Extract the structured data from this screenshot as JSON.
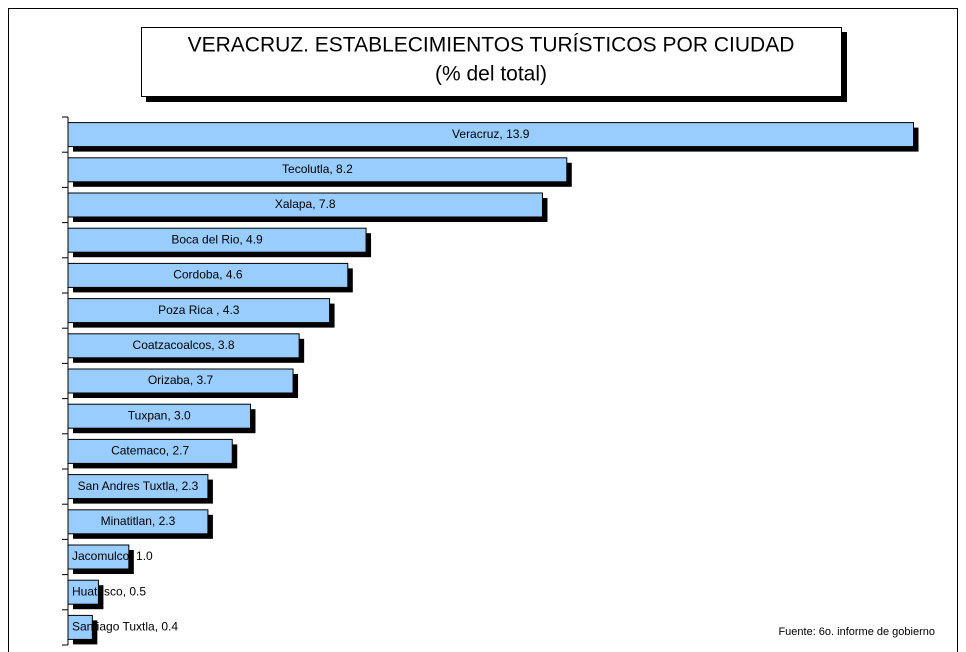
{
  "chart_data": {
    "type": "bar",
    "orientation": "horizontal",
    "title": "VERACRUZ. ESTABLECIMIENTOS TURÍSTICOS POR CIUDAD",
    "subtitle": "(% del total)",
    "values": [
      13.9,
      8.2,
      7.8,
      4.9,
      4.6,
      4.3,
      3.8,
      3.7,
      3.0,
      2.7,
      2.3,
      2.3,
      1.0,
      0.5,
      0.4
    ],
    "value_labels": [
      "Veracruz,  13.9",
      "Tecolutla,  8.2",
      "Xalapa,  7.8",
      "Boca del Rio,  4.9",
      "Cordoba,  4.6",
      "Poza Rica ,  4.3",
      "Coatzacoalcos,  3.8",
      "Orizaba,  3.7",
      "Tuxpan,  3.0",
      "Catemaco,  2.7",
      "San Andres Tuxtla,  2.3",
      "Minatitlan,  2.3",
      "Jacomulco,  1.0",
      "Huatusco,  0.5",
      "Santiago Tuxtla,  0.4"
    ],
    "color": "#99ccff",
    "xlim": [
      0,
      14.5
    ],
    "source": "Fuente: 6o. informe de gobierno"
  }
}
